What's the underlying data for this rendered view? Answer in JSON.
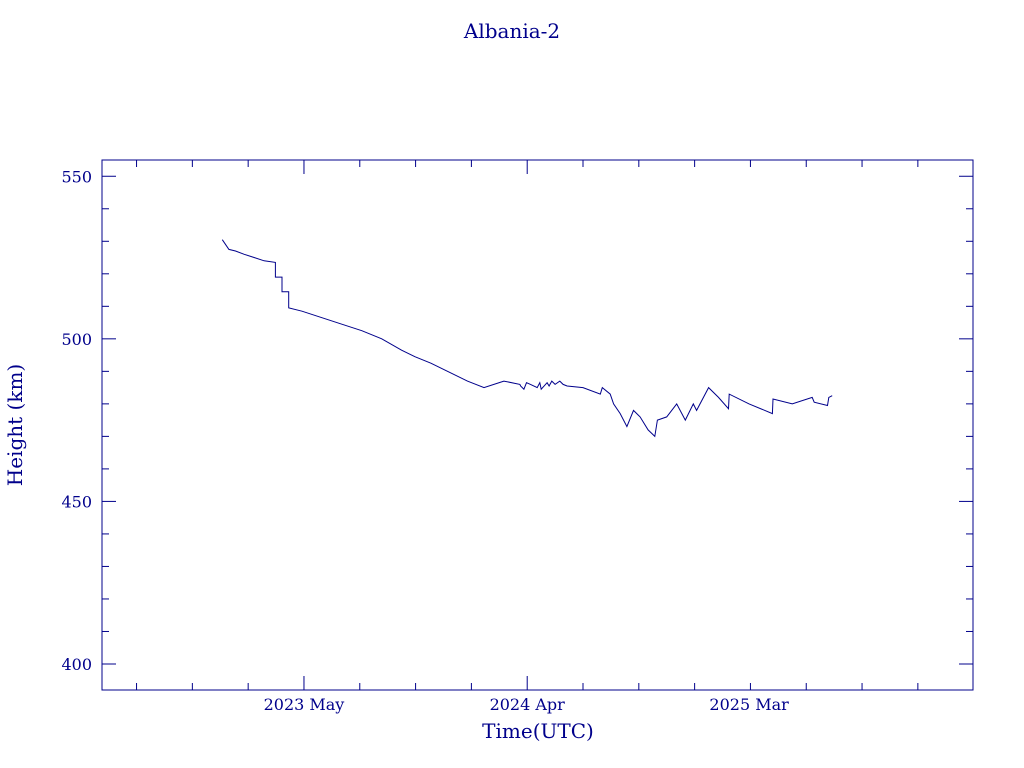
{
  "chart_data": {
    "type": "line",
    "title": "Albania-2",
    "xlabel": "Time(UTC)",
    "ylabel": "Height (km)",
    "x_ticks": [
      {
        "label": "2023 May",
        "date": "2023-05-01"
      },
      {
        "label": "2024 Apr",
        "date": "2024-04-01"
      },
      {
        "label": "2025 Mar",
        "date": "2025-03-01"
      }
    ],
    "y_ticks": [
      400,
      450,
      500,
      550
    ],
    "xlim": [
      "2022-07-01",
      "2026-02-01"
    ],
    "ylim": [
      392,
      555
    ],
    "grid": false,
    "color": "#00008b",
    "series": [
      {
        "x": [
          "2022-12-29",
          "2023-01-08",
          "2023-01-18",
          "2023-01-31",
          "2023-02-15",
          "2023-03-02",
          "2023-03-19",
          "2023-03-19",
          "2023-03-29",
          "2023-03-29",
          "2023-04-08",
          "2023-04-08",
          "2023-04-28",
          "2023-05-28",
          "2023-06-27",
          "2023-07-27",
          "2023-08-26",
          "2023-09-25",
          "2023-10-15",
          "2023-11-08",
          "2023-12-03",
          "2024-01-02",
          "2024-01-27",
          "2024-02-26",
          "2024-03-21",
          "2024-03-22",
          "2024-03-27",
          "2024-03-31",
          "2024-04-06",
          "2024-04-16",
          "2024-04-20",
          "2024-04-22",
          "2024-05-01",
          "2024-05-04",
          "2024-05-08",
          "2024-05-13",
          "2024-05-20",
          "2024-05-25",
          "2024-05-31",
          "2024-06-24",
          "2024-07-20",
          "2024-07-23",
          "2024-08-04",
          "2024-08-09",
          "2024-08-19",
          "2024-08-29",
          "2024-09-08",
          "2024-09-18",
          "2024-09-30",
          "2024-10-10",
          "2024-10-14",
          "2024-10-28",
          "2024-11-12",
          "2024-11-25",
          "2024-12-07",
          "2024-12-12",
          "2024-12-30",
          "2025-01-14",
          "2025-01-29",
          "2025-01-30",
          "2025-03-01",
          "2025-04-05",
          "2025-04-06",
          "2025-05-05",
          "2025-06-04",
          "2025-06-07",
          "2025-06-27",
          "2025-06-29",
          "2025-07-04"
        ],
        "y": [
          530.5,
          527.5,
          527.0,
          526.0,
          525.0,
          524.0,
          523.5,
          519.0,
          519.0,
          514.5,
          514.5,
          509.5,
          508.5,
          506.5,
          504.5,
          502.5,
          500.0,
          496.5,
          494.5,
          492.5,
          490.0,
          487.0,
          485.0,
          487.0,
          486.0,
          485.5,
          484.5,
          486.5,
          486.0,
          485.0,
          486.5,
          484.5,
          486.5,
          485.5,
          487.0,
          486.0,
          487.0,
          486.0,
          485.5,
          485.0,
          483.0,
          485.0,
          483.0,
          480.0,
          477.0,
          473.0,
          478.0,
          476.0,
          472.0,
          470.0,
          475.0,
          476.0,
          480.0,
          475.0,
          480.0,
          478.0,
          485.0,
          482.0,
          478.5,
          483.0,
          480.0,
          477.0,
          481.5,
          480.0,
          482.0,
          480.5,
          479.5,
          482.0,
          482.5
        ]
      }
    ]
  }
}
